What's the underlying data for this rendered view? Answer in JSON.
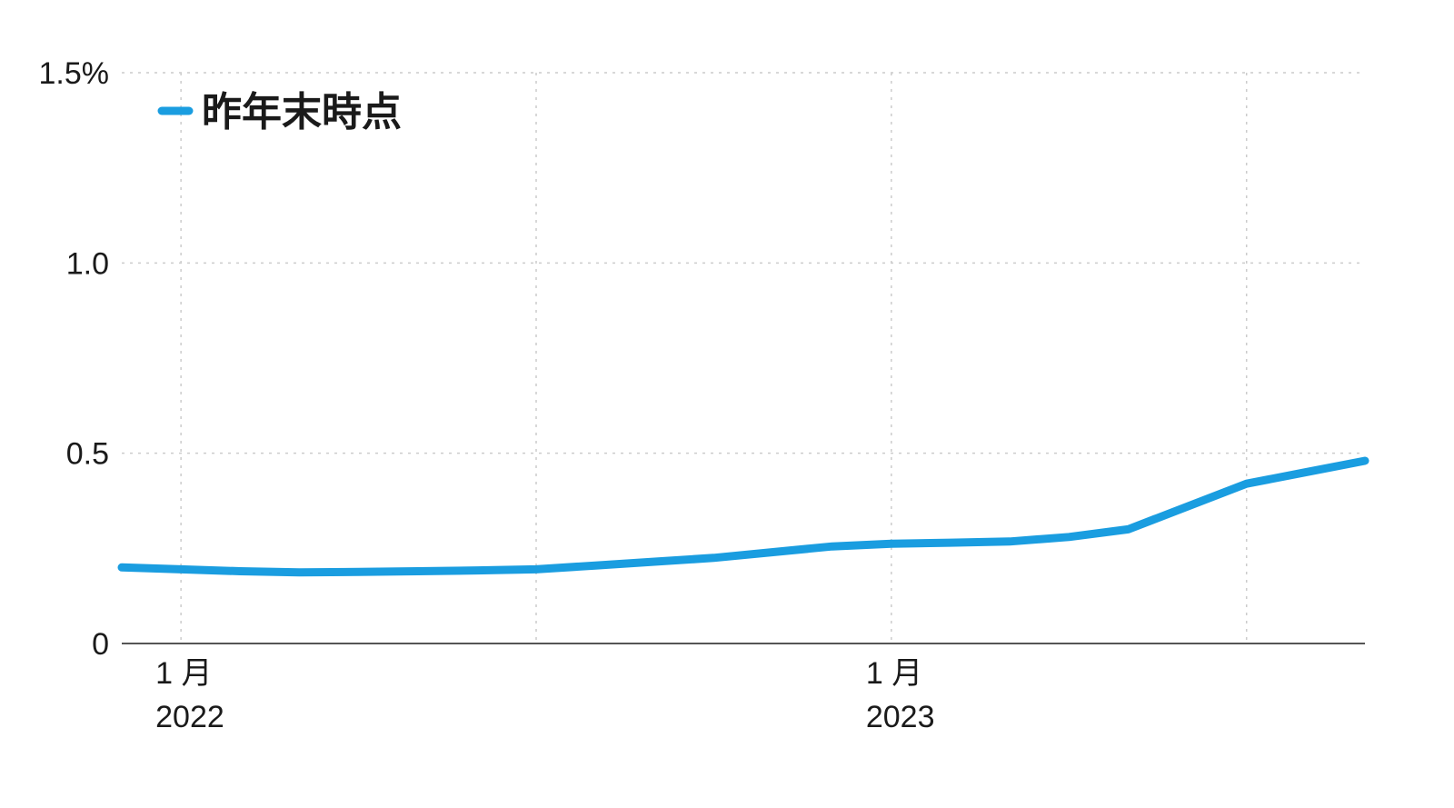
{
  "chart_data": {
    "type": "line",
    "x": [
      "2021-12",
      "2022-01",
      "2022-02",
      "2022-03",
      "2022-04",
      "2022-05",
      "2022-06",
      "2022-07",
      "2022-08",
      "2022-09",
      "2022-10",
      "2022-11",
      "2022-12",
      "2023-01",
      "2023-02",
      "2023-03",
      "2023-04",
      "2023-05",
      "2023-06",
      "2023-07",
      "2023-08",
      "2023-09"
    ],
    "series": [
      {
        "name": "昨年末時点",
        "values": [
          0.2,
          0.195,
          0.19,
          0.187,
          0.188,
          0.19,
          0.192,
          0.195,
          0.205,
          0.215,
          0.225,
          0.24,
          0.255,
          0.262,
          0.265,
          0.268,
          0.28,
          0.3,
          0.36,
          0.42,
          0.45,
          0.48
        ],
        "color": "#1a9de0"
      }
    ],
    "yticks": [
      {
        "value": 0,
        "label": "0"
      },
      {
        "value": 0.5,
        "label": "0.5"
      },
      {
        "value": 1.0,
        "label": "1.0"
      },
      {
        "value": 1.5,
        "label": "1.5%"
      }
    ],
    "xticks": [
      {
        "x": "2022-01",
        "month": "1 月",
        "year": "2022"
      },
      {
        "x": "2023-01",
        "month": "1 月",
        "year": "2023"
      }
    ],
    "xgrid": [
      "2022-01",
      "2022-07",
      "2023-01",
      "2023-07"
    ],
    "ylim": [
      0,
      1.5
    ],
    "xlim": [
      "2021-12",
      "2023-09"
    ],
    "grid": true,
    "legend_position": "top-left",
    "axis_color": "#555555",
    "grid_color": "#cccccc"
  }
}
